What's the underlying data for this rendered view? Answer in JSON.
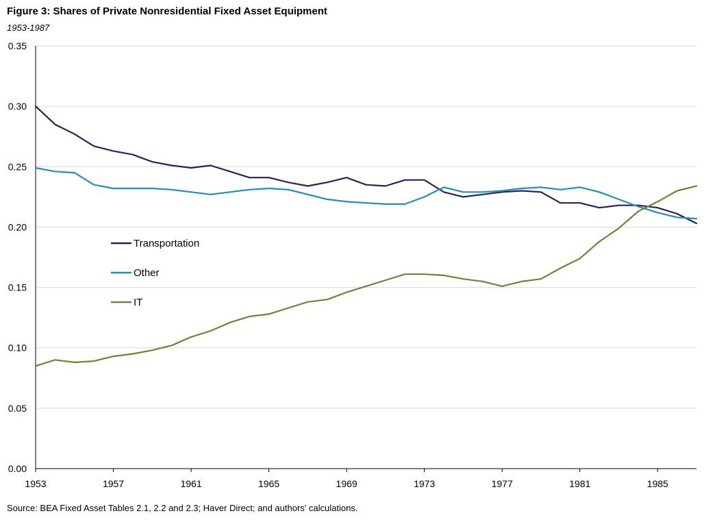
{
  "header": {
    "title": "Figure 3: Shares of Private Nonresidential Fixed Asset Equipment",
    "subtitle": "1953-1987"
  },
  "footer": {
    "source": "Source: BEA Fixed Asset Tables 2.1, 2.2 and 2.3; Haver Direct; and authors' calculations."
  },
  "chart_data": {
    "type": "line",
    "title": "Figure 3: Shares of Private Nonresidential Fixed Asset Equipment",
    "subtitle": "1953-1987",
    "xlabel": "",
    "ylabel": "",
    "x": [
      1953,
      1954,
      1955,
      1956,
      1957,
      1958,
      1959,
      1960,
      1961,
      1962,
      1963,
      1964,
      1965,
      1966,
      1967,
      1968,
      1969,
      1970,
      1971,
      1972,
      1973,
      1974,
      1975,
      1976,
      1977,
      1978,
      1979,
      1980,
      1981,
      1982,
      1983,
      1984,
      1985,
      1986,
      1987
    ],
    "xlim": [
      1953,
      1987
    ],
    "ylim": [
      0,
      0.35
    ],
    "x_ticks": [
      "1953",
      "1957",
      "1961",
      "1965",
      "1969",
      "1973",
      "1977",
      "1981",
      "1985"
    ],
    "y_ticks": [
      "0.00",
      "0.05",
      "0.10",
      "0.15",
      "0.20",
      "0.25",
      "0.30",
      "0.35"
    ],
    "grid": "horizontal",
    "legend_position": "middle-left",
    "series": [
      {
        "name": "Transportation",
        "color": "#2b1f5e",
        "values": [
          0.3,
          0.285,
          0.277,
          0.267,
          0.263,
          0.26,
          0.254,
          0.251,
          0.249,
          0.251,
          0.246,
          0.241,
          0.241,
          0.237,
          0.234,
          0.237,
          0.241,
          0.235,
          0.234,
          0.239,
          0.239,
          0.229,
          0.225,
          0.227,
          0.229,
          0.23,
          0.229,
          0.22,
          0.22,
          0.216,
          0.218,
          0.218,
          0.216,
          0.211,
          0.203
        ]
      },
      {
        "name": "Other",
        "color": "#1f8dbf",
        "values": [
          0.249,
          0.246,
          0.245,
          0.235,
          0.232,
          0.232,
          0.232,
          0.231,
          0.229,
          0.227,
          0.229,
          0.231,
          0.232,
          0.231,
          0.227,
          0.223,
          0.221,
          0.22,
          0.219,
          0.219,
          0.225,
          0.233,
          0.229,
          0.229,
          0.23,
          0.232,
          0.233,
          0.231,
          0.233,
          0.229,
          0.223,
          0.217,
          0.212,
          0.208,
          0.207
        ]
      },
      {
        "name": "IT",
        "color": "#6b8237",
        "values": [
          0.085,
          0.09,
          0.088,
          0.089,
          0.093,
          0.095,
          0.098,
          0.102,
          0.109,
          0.114,
          0.121,
          0.126,
          0.128,
          0.133,
          0.138,
          0.14,
          0.146,
          0.151,
          0.156,
          0.161,
          0.161,
          0.16,
          0.157,
          0.155,
          0.151,
          0.155,
          0.157,
          0.166,
          0.174,
          0.188,
          0.199,
          0.213,
          0.221,
          0.23,
          0.234
        ]
      }
    ]
  }
}
